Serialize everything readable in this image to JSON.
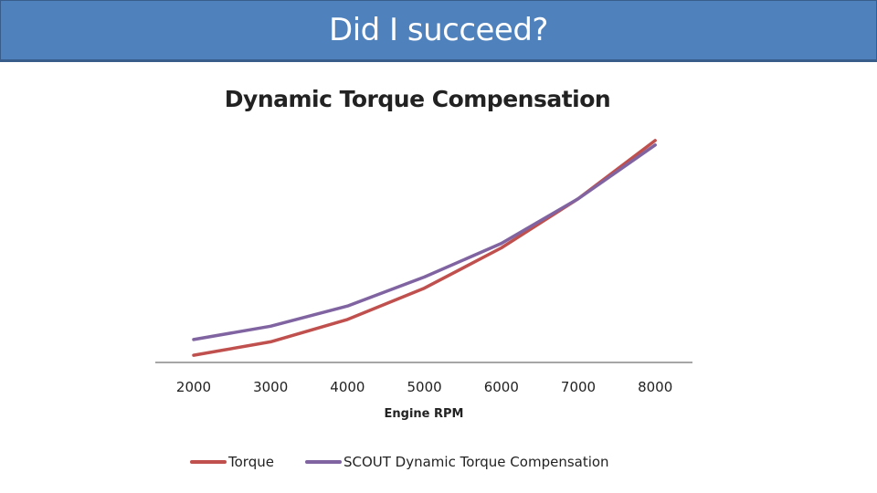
{
  "slide": {
    "title": "Did I succeed?",
    "header_color": "#4f81bd"
  },
  "chart_data": {
    "type": "line",
    "title": "Dynamic Torque Compensation",
    "xlabel": "Engine RPM",
    "ylabel": "",
    "categories": [
      "2000",
      "3000",
      "4000",
      "5000",
      "6000",
      "7000",
      "8000"
    ],
    "x": [
      2000,
      3000,
      4000,
      5000,
      6000,
      7000,
      8000
    ],
    "series": [
      {
        "name": "Torque",
        "color": "#c0504d",
        "values": [
          2,
          8,
          18,
          32,
          50,
          72,
          98
        ]
      },
      {
        "name": "SCOUT Dynamic Torque Compensation",
        "color": "#8064a2",
        "values": [
          9,
          15,
          24,
          37,
          52,
          72,
          96
        ]
      }
    ],
    "ylim": [
      0,
      100
    ],
    "y_axis_visible": false,
    "grid": false,
    "legend_position": "bottom"
  }
}
